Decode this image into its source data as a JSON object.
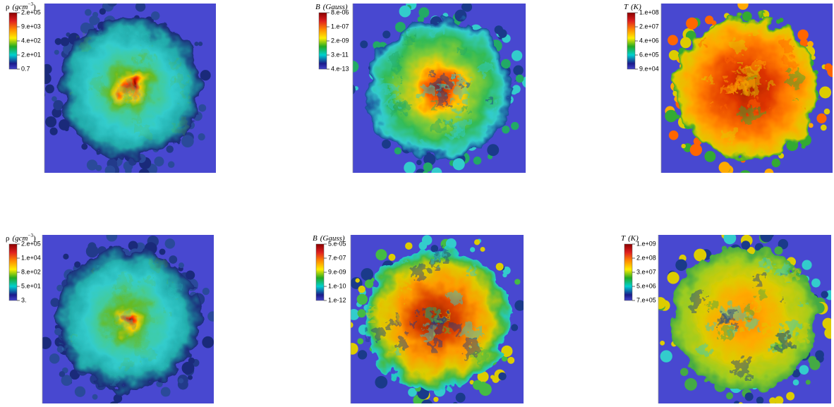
{
  "panels": [
    {
      "quantity": "ρ",
      "unit": "(gcm",
      "unit_exponent": "−3",
      "unit_close": ")",
      "ticks": [
        "2.e+05",
        "9.e+03",
        "4.e+02",
        "2.e+01",
        "0.7"
      ]
    },
    {
      "quantity": "B",
      "unit": "(Gauss)",
      "ticks": [
        "8.e-06",
        "1.e-07",
        "2.e-09",
        "3.e-11",
        "4.e-13"
      ]
    },
    {
      "quantity": "T",
      "unit": "(K)",
      "ticks": [
        "1.e+08",
        "2.e+07",
        "4.e+06",
        "6.e+05",
        "9.e+04"
      ]
    },
    {
      "quantity": "ρ",
      "unit": "(gcm",
      "unit_exponent": "−3",
      "unit_close": ")",
      "ticks": [
        "2.e+05",
        "1.e+04",
        "8.e+02",
        "5.e+01",
        "3."
      ]
    },
    {
      "quantity": "B",
      "unit": "(Gauss)",
      "ticks": [
        "5.e-05",
        "7.e-07",
        "9.e-09",
        "1.e-10",
        "1.e-12"
      ]
    },
    {
      "quantity": "T",
      "unit": "(K)",
      "ticks": [
        "1.e+09",
        "2.e+08",
        "3.e+07",
        "5.e+06",
        "7.e+05"
      ]
    }
  ]
}
